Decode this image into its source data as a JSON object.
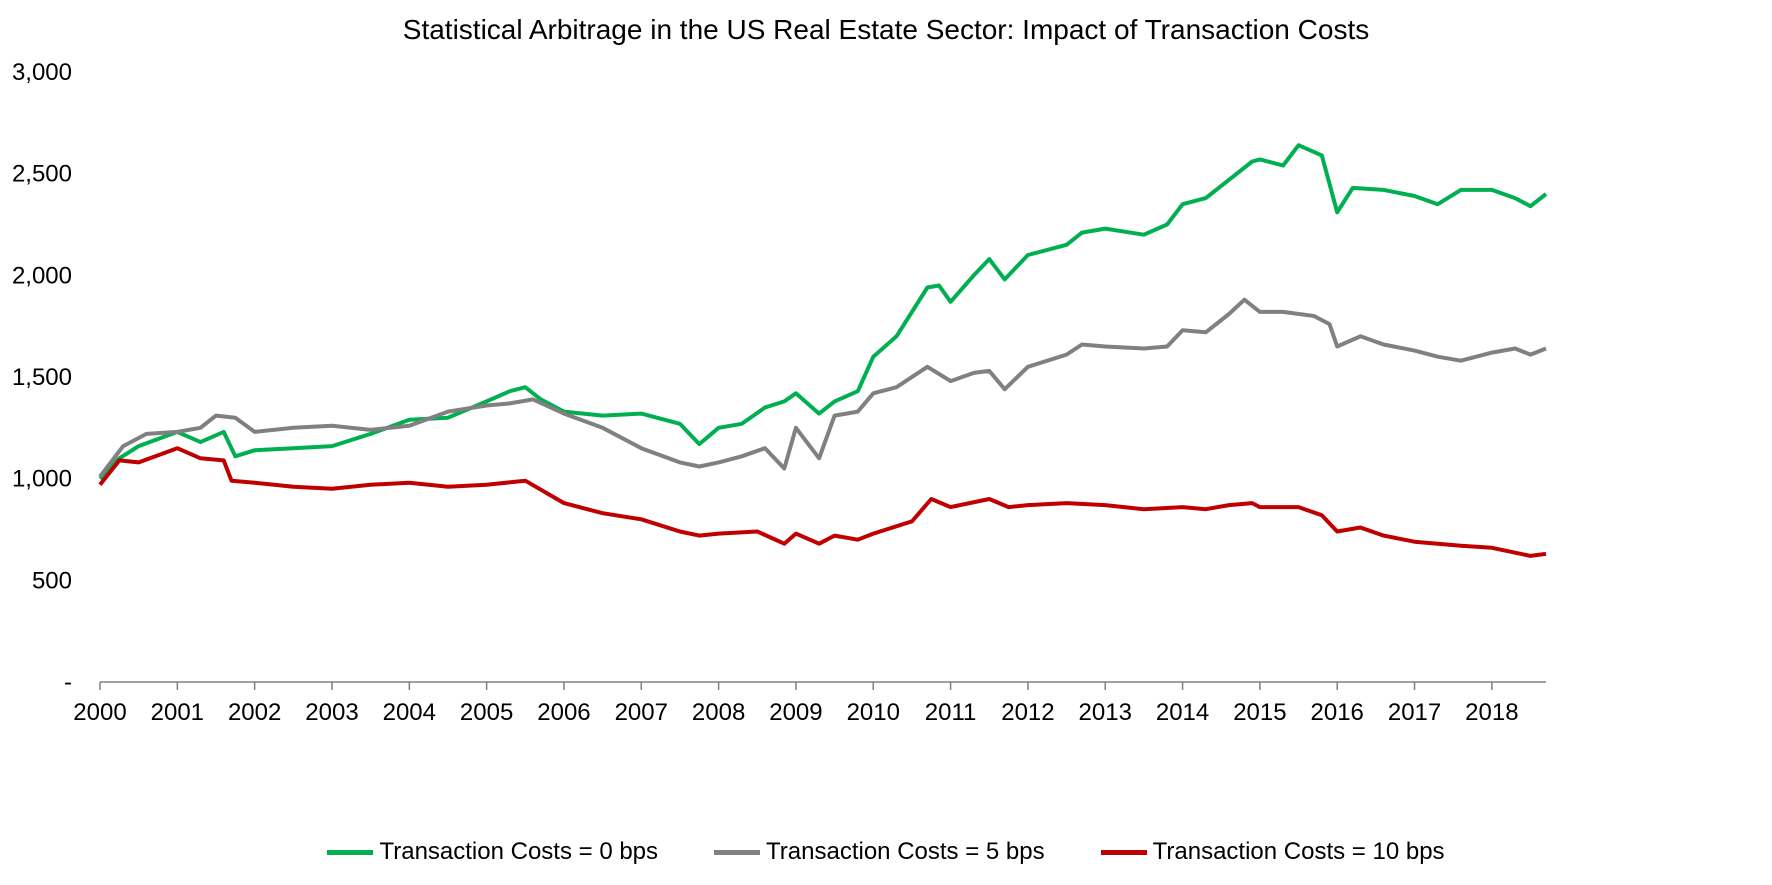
{
  "chart_data": {
    "type": "line",
    "title": "Statistical Arbitrage in the US Real Estate Sector: Impact of Transaction Costs",
    "xlabel": "",
    "ylabel": "",
    "x_ticks": [
      "2000",
      "2001",
      "2002",
      "2003",
      "2004",
      "2005",
      "2006",
      "2007",
      "2008",
      "2009",
      "2010",
      "2011",
      "2012",
      "2013",
      "2014",
      "2015",
      "2016",
      "2017",
      "2018"
    ],
    "y_ticks": [
      "-",
      "500",
      "1,000",
      "1,500",
      "2,000",
      "2,500",
      "3,000"
    ],
    "xlim": [
      2000,
      2018.7
    ],
    "ylim": [
      0,
      3000
    ],
    "grid": false,
    "legend_position": "bottom",
    "series": [
      {
        "name": "Transaction Costs = 0 bps",
        "color": "#00b050",
        "x": [
          2000,
          2000.25,
          2000.5,
          2001,
          2001.3,
          2001.6,
          2001.75,
          2002,
          2002.5,
          2003,
          2003.5,
          2004,
          2004.5,
          2005,
          2005.3,
          2005.5,
          2005.7,
          2006,
          2006.5,
          2007,
          2007.5,
          2007.75,
          2008,
          2008.3,
          2008.6,
          2008.85,
          2009,
          2009.3,
          2009.5,
          2009.8,
          2010,
          2010.3,
          2010.7,
          2010.85,
          2011,
          2011.3,
          2011.5,
          2011.7,
          2012,
          2012.5,
          2012.7,
          2013,
          2013.5,
          2013.8,
          2014,
          2014.3,
          2014.6,
          2014.9,
          2015,
          2015.3,
          2015.5,
          2015.8,
          2016,
          2016.2,
          2016.6,
          2017,
          2017.3,
          2017.6,
          2018,
          2018.3,
          2018.5,
          2018.7
        ],
        "y": [
          1000,
          1100,
          1160,
          1230,
          1180,
          1230,
          1110,
          1140,
          1150,
          1160,
          1220,
          1290,
          1300,
          1380,
          1430,
          1450,
          1390,
          1330,
          1310,
          1320,
          1270,
          1170,
          1250,
          1270,
          1350,
          1380,
          1420,
          1320,
          1380,
          1430,
          1600,
          1700,
          1940,
          1950,
          1870,
          2000,
          2080,
          1980,
          2100,
          2150,
          2210,
          2230,
          2200,
          2250,
          2350,
          2380,
          2470,
          2560,
          2570,
          2540,
          2640,
          2590,
          2310,
          2430,
          2420,
          2390,
          2350,
          2420,
          2420,
          2380,
          2340,
          2400
        ]
      },
      {
        "name": "Transaction Costs = 5 bps",
        "color": "#808080",
        "x": [
          2000,
          2000.3,
          2000.6,
          2001,
          2001.3,
          2001.5,
          2001.75,
          2002,
          2002.5,
          2003,
          2003.5,
          2004,
          2004.5,
          2005,
          2005.3,
          2005.6,
          2006,
          2006.5,
          2007,
          2007.5,
          2007.75,
          2008,
          2008.3,
          2008.6,
          2008.85,
          2009,
          2009.3,
          2009.5,
          2009.8,
          2010,
          2010.3,
          2010.7,
          2011,
          2011.3,
          2011.5,
          2011.7,
          2012,
          2012.5,
          2012.7,
          2013,
          2013.5,
          2013.8,
          2014,
          2014.3,
          2014.6,
          2014.8,
          2015,
          2015.3,
          2015.7,
          2015.9,
          2016,
          2016.3,
          2016.6,
          2017,
          2017.3,
          2017.6,
          2018,
          2018.3,
          2018.5,
          2018.7
        ],
        "y": [
          1010,
          1160,
          1220,
          1230,
          1250,
          1310,
          1300,
          1230,
          1250,
          1260,
          1240,
          1260,
          1330,
          1360,
          1370,
          1390,
          1320,
          1250,
          1150,
          1080,
          1060,
          1080,
          1110,
          1150,
          1050,
          1250,
          1100,
          1310,
          1330,
          1420,
          1450,
          1550,
          1480,
          1520,
          1530,
          1440,
          1550,
          1610,
          1660,
          1650,
          1640,
          1650,
          1730,
          1720,
          1810,
          1880,
          1820,
          1820,
          1800,
          1760,
          1650,
          1700,
          1660,
          1630,
          1600,
          1580,
          1620,
          1640,
          1610,
          1640
        ]
      },
      {
        "name": "Transaction Costs = 10 bps",
        "color": "#c00000",
        "x": [
          2000,
          2000.25,
          2000.5,
          2001,
          2001.3,
          2001.6,
          2001.7,
          2002,
          2002.5,
          2003,
          2003.5,
          2004,
          2004.5,
          2005,
          2005.5,
          2006,
          2006.5,
          2007,
          2007.5,
          2007.75,
          2008,
          2008.5,
          2008.85,
          2009,
          2009.3,
          2009.5,
          2009.8,
          2010,
          2010.5,
          2010.75,
          2011,
          2011.5,
          2011.75,
          2012,
          2012.5,
          2013,
          2013.5,
          2014,
          2014.3,
          2014.6,
          2014.9,
          2015,
          2015.5,
          2015.8,
          2016,
          2016.3,
          2016.6,
          2017,
          2017.3,
          2017.6,
          2018,
          2018.5,
          2018.7
        ],
        "y": [
          970,
          1090,
          1080,
          1150,
          1100,
          1090,
          990,
          980,
          960,
          950,
          970,
          980,
          960,
          970,
          990,
          880,
          830,
          800,
          740,
          720,
          730,
          740,
          680,
          730,
          680,
          720,
          700,
          730,
          790,
          900,
          860,
          900,
          860,
          870,
          880,
          870,
          850,
          860,
          850,
          870,
          880,
          860,
          860,
          820,
          740,
          760,
          720,
          690,
          680,
          670,
          660,
          620,
          630
        ]
      }
    ]
  }
}
